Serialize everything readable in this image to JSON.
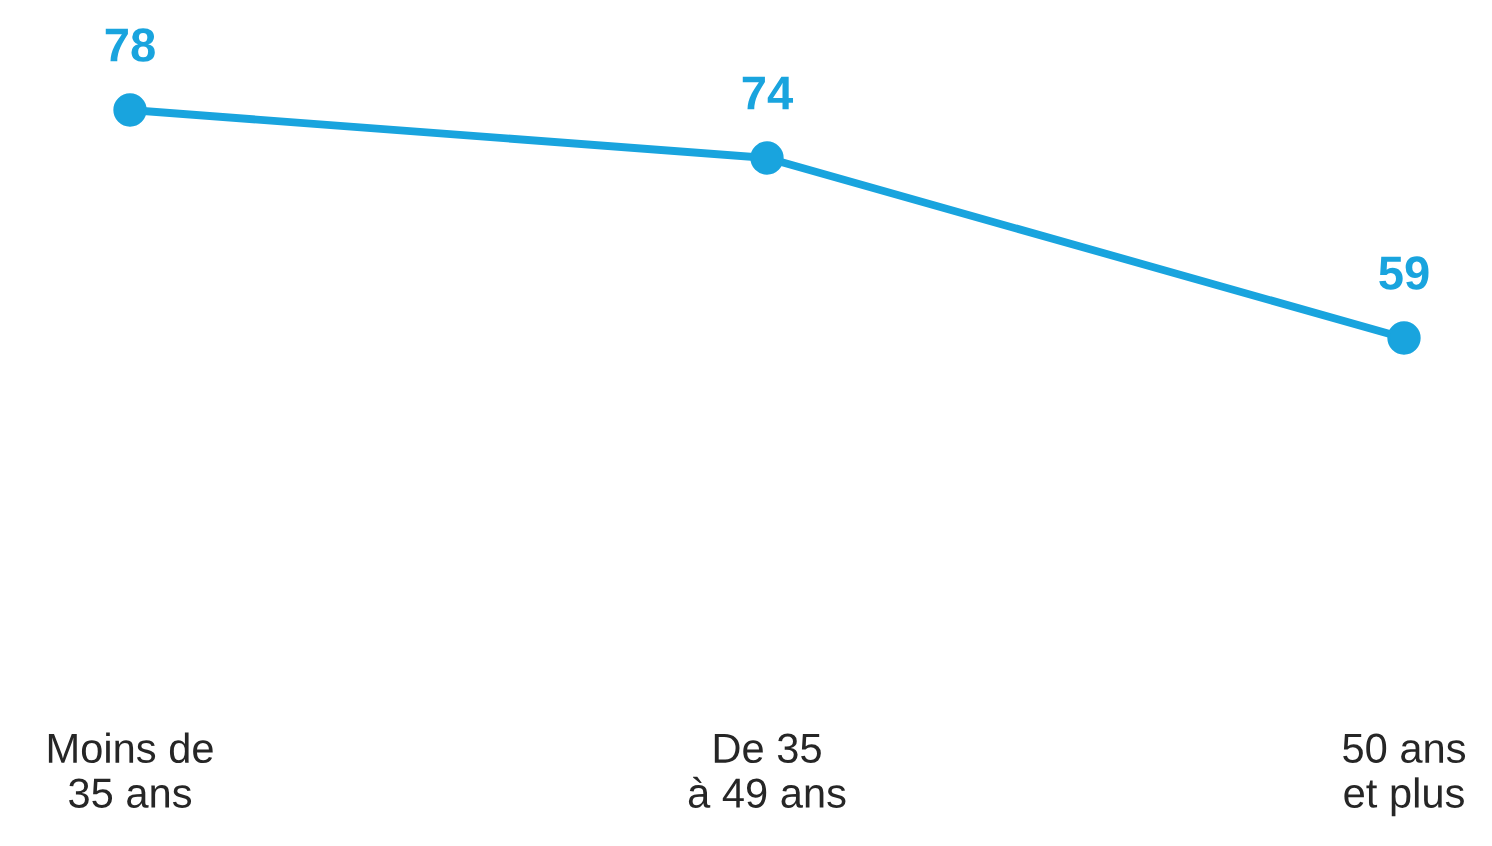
{
  "chart_data": {
    "type": "line",
    "categories": [
      "Moins de\n35 ans",
      "De 35\nà 49 ans",
      "50 ans\net plus"
    ],
    "series": [
      {
        "color": "#19a4de",
        "values": [
          78,
          74,
          59
        ]
      }
    ],
    "data_labels": true,
    "marker": "circle",
    "line_style": "solid",
    "grid": false,
    "legend": false
  }
}
